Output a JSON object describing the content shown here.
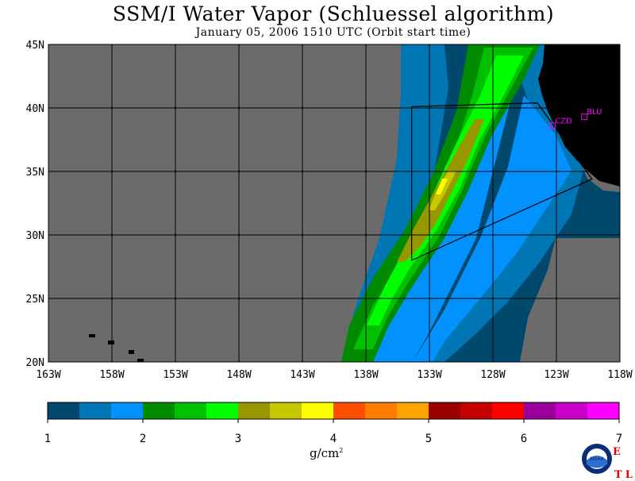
{
  "title": "SSM/I Water Vapor (Schluessel algorithm)",
  "subtitle": "January 05, 2006  1510 UTC  (Orbit start time)",
  "map": {
    "projection": "equirectangular",
    "lon_range": [
      -163,
      -118
    ],
    "lat_range": [
      20,
      45
    ],
    "lat_ticks": [
      {
        "value": 45,
        "label": "45N"
      },
      {
        "value": 40,
        "label": "40N"
      },
      {
        "value": 35,
        "label": "35N"
      },
      {
        "value": 30,
        "label": "30N"
      },
      {
        "value": 25,
        "label": "25N"
      },
      {
        "value": 20,
        "label": "20N"
      }
    ],
    "lon_ticks": [
      {
        "value": -163,
        "label": "163W"
      },
      {
        "value": -158,
        "label": "158W"
      },
      {
        "value": -153,
        "label": "153W"
      },
      {
        "value": -148,
        "label": "148W"
      },
      {
        "value": -143,
        "label": "143W"
      },
      {
        "value": -138,
        "label": "138W"
      },
      {
        "value": -133,
        "label": "133W"
      },
      {
        "value": -128,
        "label": "128W"
      },
      {
        "value": -123,
        "label": "123W"
      },
      {
        "value": -118,
        "label": "118W"
      }
    ],
    "no_data_color": "#6b6b6b",
    "land_color": "#000000",
    "grid_color": "#000000",
    "stations": [
      {
        "label": "CZD",
        "lon": -123.3,
        "lat": 38.6
      },
      {
        "label": "BLU",
        "lon": -120.8,
        "lat": 39.3
      }
    ],
    "outline_polygon": [
      [
        -134.4,
        40.1
      ],
      [
        -124.5,
        40.4
      ],
      [
        -120.2,
        34.4
      ],
      [
        -134.4,
        28.0
      ]
    ]
  },
  "colorbar": {
    "min": 1,
    "max": 7,
    "labels": [
      "1",
      "2",
      "3",
      "4",
      "5",
      "6",
      "7"
    ],
    "unit": "g/cm",
    "unit_sup": "2",
    "colors": [
      "#01496c",
      "#0176b5",
      "#0192fe",
      "#008a00",
      "#00c000",
      "#00fe00",
      "#979700",
      "#c7c700",
      "#fefe00",
      "#fe4f00",
      "#fe7d00",
      "#fea400",
      "#9a0000",
      "#c40000",
      "#fe0000",
      "#990099",
      "#c800c8",
      "#fe00fe"
    ]
  },
  "logo": {
    "label": "NOAA",
    "etl_line1": "E",
    "etl_line2": "T",
    "etl_line3": "L"
  }
}
